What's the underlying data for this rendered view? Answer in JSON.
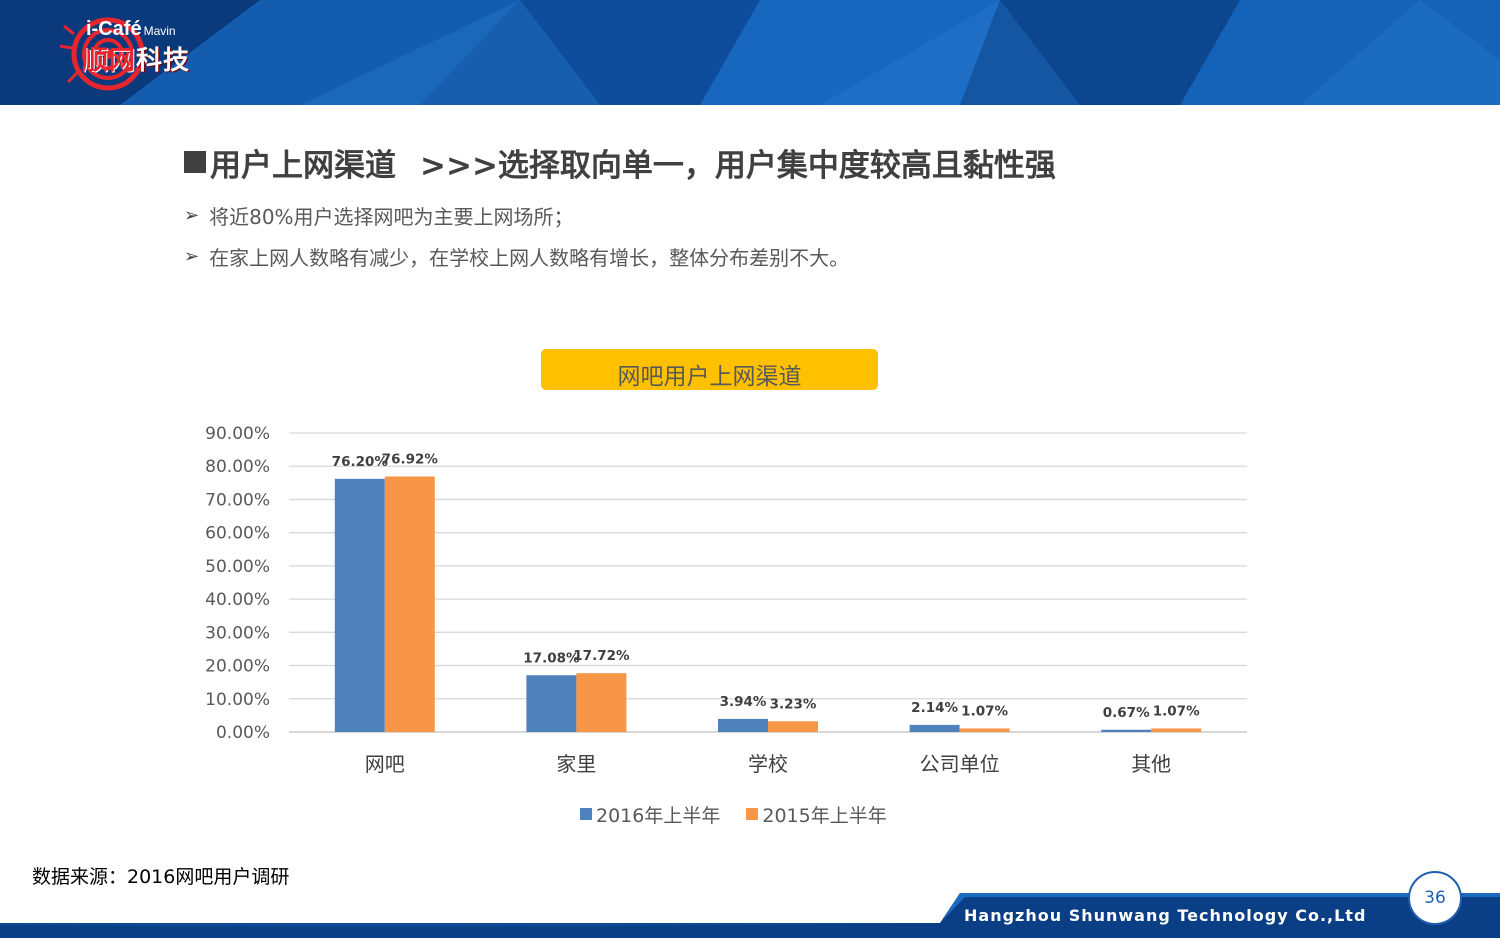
{
  "header": {
    "logo_top": "i-Café",
    "logo_mavin": "Mavin",
    "logo_cn_red": "顺网",
    "logo_cn": "科技",
    "colors": {
      "banner_dark": "#0a3f86",
      "banner_light": "#1a6cc4",
      "accent_red": "#e6262e"
    }
  },
  "slide": {
    "title_main": "用户上网渠道",
    "title_sub": ">>>选择取向单一，用户集中度较高且黏性强",
    "bullets": [
      "将近80%用户选择网吧为主要上网场所；",
      "在家上网人数略有减少，在学校上网人数略有增长，整体分布差别不大。"
    ],
    "source": "数据来源：2016网吧用户调研"
  },
  "chart_data": {
    "type": "bar",
    "title": "网吧用户上网渠道",
    "categories": [
      "网吧",
      "家里",
      "学校",
      "公司单位",
      "其他"
    ],
    "series": [
      {
        "name": "2016年上半年",
        "color": "#4f81bd",
        "values": [
          76.2,
          17.08,
          3.94,
          2.14,
          0.67
        ],
        "labels": [
          "76.20%",
          "17.08%",
          "3.94%",
          "2.14%",
          "0.67%"
        ]
      },
      {
        "name": "2015年上半年",
        "color": "#f79646",
        "values": [
          76.92,
          17.72,
          3.23,
          1.07,
          1.07
        ],
        "labels": [
          "76.92%",
          "17.72%",
          "3.23%",
          "1.07%",
          "1.07%"
        ]
      }
    ],
    "yticks": [
      "0.00%",
      "10.00%",
      "20.00%",
      "30.00%",
      "40.00%",
      "50.00%",
      "60.00%",
      "70.00%",
      "80.00%",
      "90.00%"
    ],
    "ylim": [
      0,
      90
    ],
    "grid": true,
    "legend": "bottom"
  },
  "footer": {
    "company": "Hangzhou Shunwang Technology Co.,Ltd",
    "page_number": "36"
  }
}
